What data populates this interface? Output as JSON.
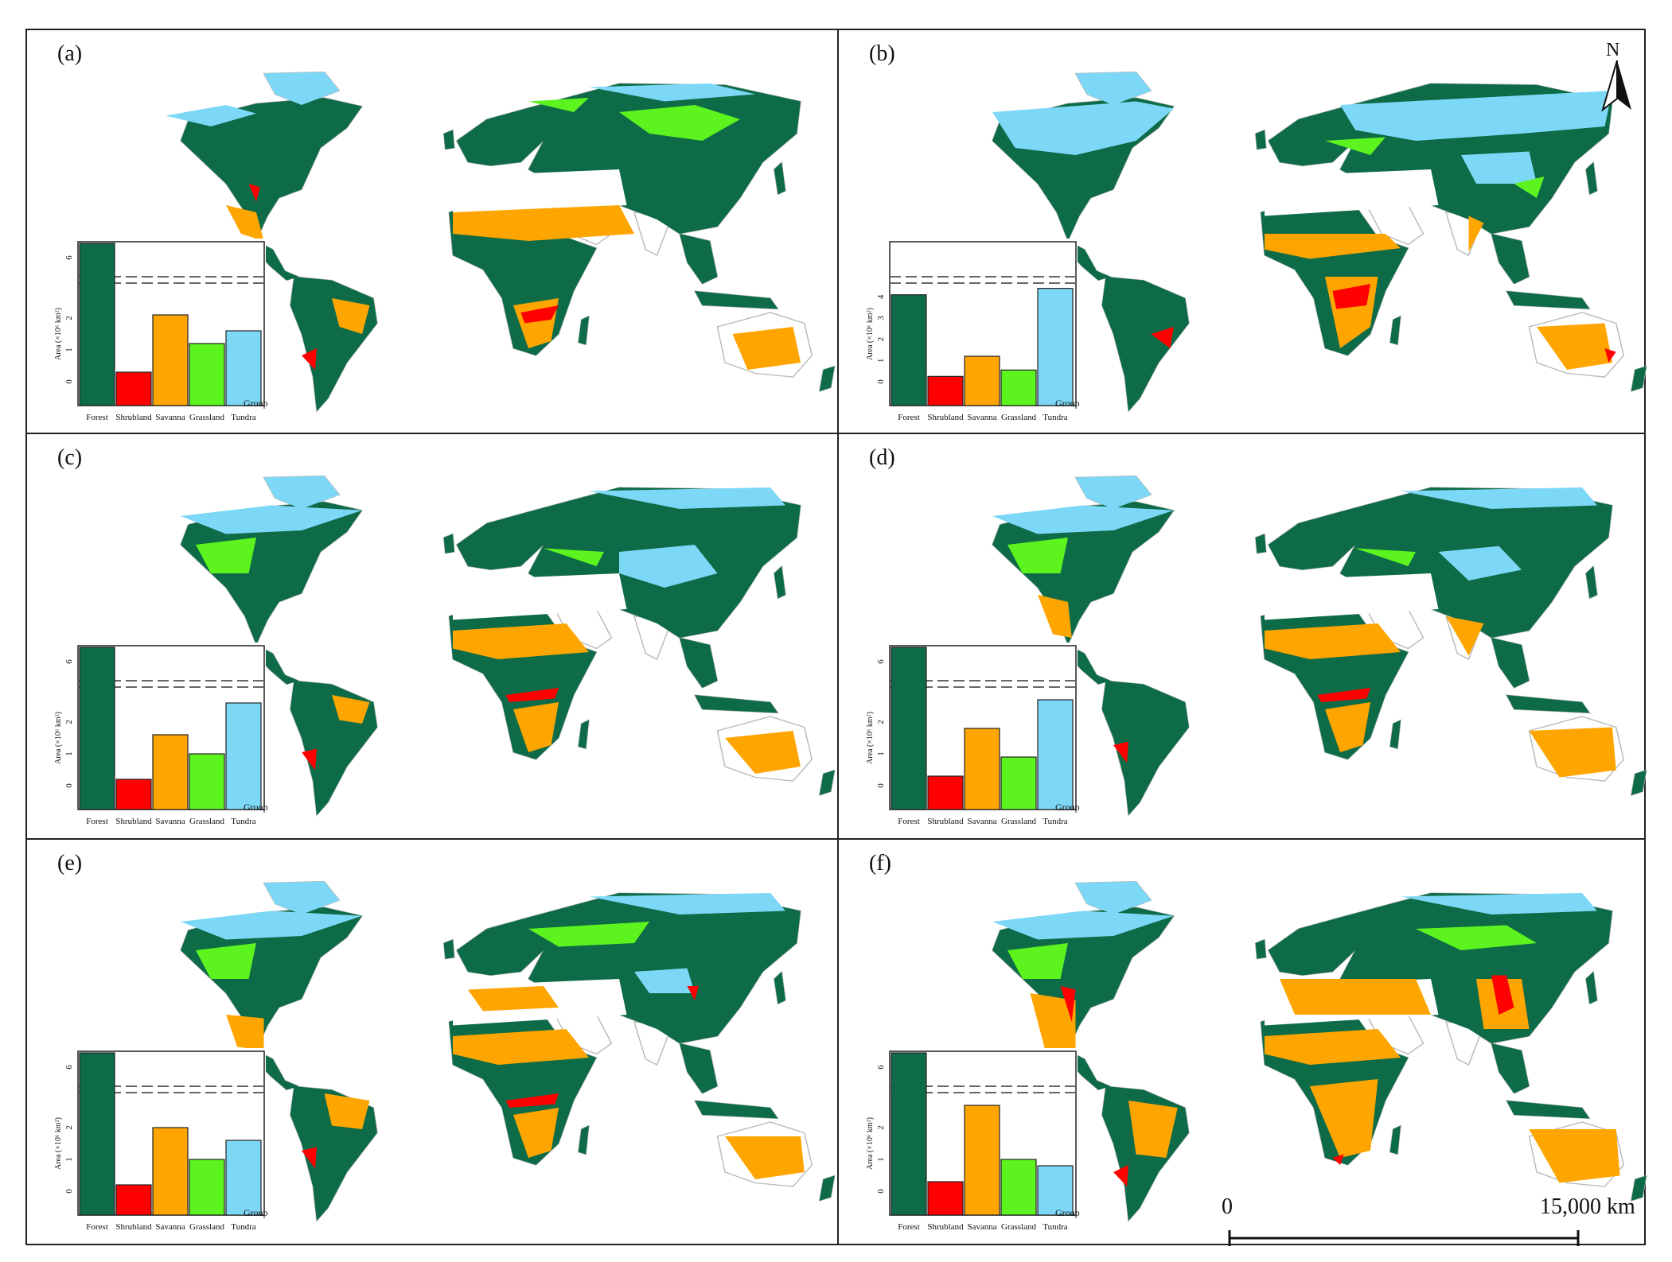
{
  "colors": {
    "Forest": "#0e6b47",
    "Shrubland": "#ff0000",
    "Savanna": "#ffa500",
    "Grassland": "#5cf31f",
    "Tundra": "#7dd8f7",
    "land_outline": "#b8b8b8"
  },
  "north_arrow": {
    "label": "N"
  },
  "scale_bar": {
    "start": "0",
    "end": "15,000 km"
  },
  "group_label": "Group",
  "y_axis_label": "Area (×10⁶ km²)",
  "chart_data": [
    {
      "type": "bar",
      "panel": "(a)",
      "categories": [
        "Forest",
        "Shrubland",
        "Savanna",
        "Grassland",
        "Tundra"
      ],
      "values": [
        6.8,
        0.3,
        2.1,
        1.2,
        1.6
      ],
      "xlabel": "Group",
      "ylabel": "Area (×10⁶ km²)",
      "ytick_labels": [
        "0",
        "1",
        "2",
        "6"
      ],
      "broken_axis": true
    },
    {
      "type": "bar",
      "panel": "(b)",
      "categories": [
        "Forest",
        "Shrubland",
        "Savanna",
        "Grassland",
        "Tundra"
      ],
      "values": [
        4.1,
        0.25,
        1.2,
        0.55,
        4.4
      ],
      "xlabel": "Group",
      "ylabel": "Area (×10⁶ km²)",
      "ytick_labels": [
        "0",
        "1",
        "2",
        "3",
        "4"
      ],
      "broken_axis": true
    },
    {
      "type": "bar",
      "panel": "(c)",
      "categories": [
        "Forest",
        "Shrubland",
        "Savanna",
        "Grassland",
        "Tundra"
      ],
      "values": [
        6.6,
        0.2,
        1.6,
        1.0,
        2.6
      ],
      "xlabel": "Group",
      "ylabel": "Area (×10⁶ km²)",
      "ytick_labels": [
        "0",
        "1",
        "2",
        "6"
      ],
      "broken_axis": true
    },
    {
      "type": "bar",
      "panel": "(d)",
      "categories": [
        "Forest",
        "Shrubland",
        "Savanna",
        "Grassland",
        "Tundra"
      ],
      "values": [
        6.2,
        0.3,
        1.8,
        0.9,
        2.7
      ],
      "xlabel": "Group",
      "ylabel": "Area (×10⁶ km²)",
      "ytick_labels": [
        "0",
        "1",
        "2",
        "6"
      ],
      "broken_axis": true
    },
    {
      "type": "bar",
      "panel": "(e)",
      "categories": [
        "Forest",
        "Shrubland",
        "Savanna",
        "Grassland",
        "Tundra"
      ],
      "values": [
        7.0,
        0.2,
        2.0,
        1.0,
        1.6
      ],
      "xlabel": "Group",
      "ylabel": "Area (×10⁶ km²)",
      "ytick_labels": [
        "0",
        "1",
        "2",
        "6"
      ],
      "broken_axis": true
    },
    {
      "type": "bar",
      "panel": "(f)",
      "categories": [
        "Forest",
        "Shrubland",
        "Savanna",
        "Grassland",
        "Tundra"
      ],
      "values": [
        6.9,
        0.3,
        2.7,
        1.0,
        0.8
      ],
      "xlabel": "Group",
      "ylabel": "Area (×10⁶ km²)",
      "ytick_labels": [
        "0",
        "1",
        "2",
        "6"
      ],
      "broken_axis": true
    }
  ]
}
